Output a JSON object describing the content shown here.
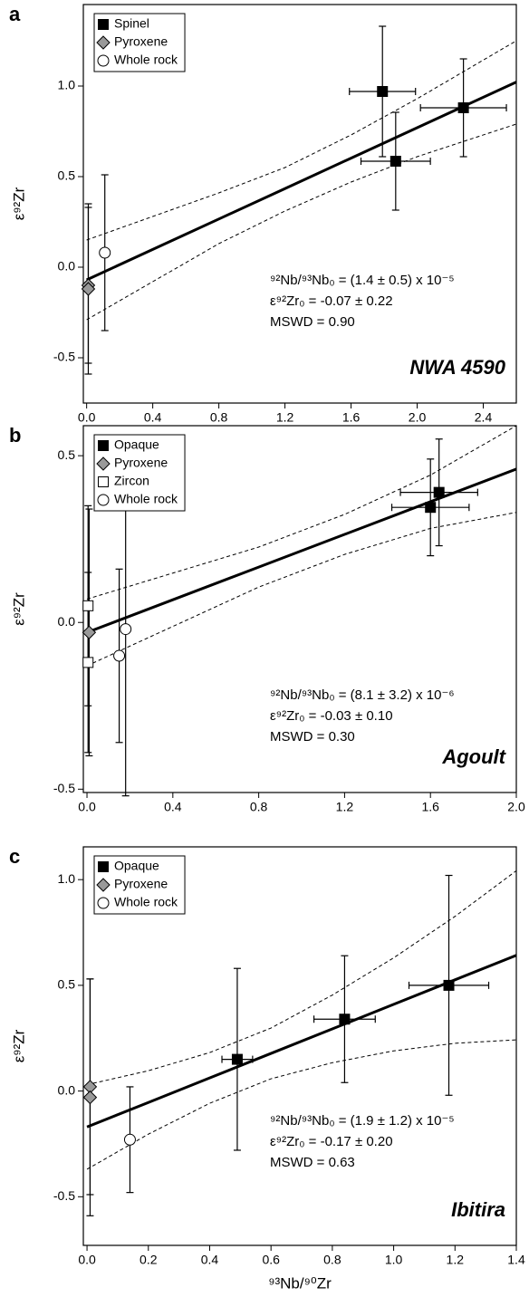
{
  "chart_data": [
    {
      "type": "scatter",
      "panel": "a",
      "ylabel": "ε⁹²Zr",
      "xlim": [
        -0.02,
        2.6
      ],
      "ylim": [
        -0.75,
        1.45
      ],
      "xticks": [
        {
          "value": 0,
          "label": "0.0"
        },
        0.4,
        0.8,
        1.2,
        1.6,
        {
          "value": 2,
          "label": "2.0"
        },
        2.4
      ],
      "yticks": [
        {
          "value": 1,
          "label": "1.0"
        },
        0.5,
        {
          "value": 0,
          "label": "0.0"
        },
        -0.5
      ],
      "legend": "upper left",
      "series": [
        {
          "name": "Spinel",
          "marker": "square",
          "color": "#000000",
          "x": [
            1.79,
            1.87,
            2.28
          ],
          "y": [
            0.97,
            0.585,
            0.88
          ],
          "xerr": [
            0.2,
            0.21,
            0.26
          ],
          "yerr": [
            0.36,
            0.27,
            0.27
          ]
        },
        {
          "name": "Pyroxene",
          "marker": "diamond",
          "color": "#999999",
          "x": [
            0.01,
            0.01
          ],
          "y": [
            -0.1,
            -0.12
          ],
          "xerr": [
            null,
            null
          ],
          "yerr": [
            0.43,
            0.47
          ]
        },
        {
          "name": "Whole rock",
          "marker": "circle",
          "color": "#ffffff",
          "x": [
            0.11
          ],
          "y": [
            0.08
          ],
          "xerr": [
            null
          ],
          "yerr": [
            0.43
          ]
        }
      ],
      "fit": {
        "x": [
          0,
          0.4,
          0.8,
          1.2,
          1.6,
          2.0,
          2.6
        ],
        "y": [
          -0.07,
          0.098,
          0.266,
          0.434,
          0.602,
          0.77,
          1.022
        ],
        "upper": [
          0.15,
          0.28,
          0.41,
          0.55,
          0.73,
          0.93,
          1.25
        ],
        "lower": [
          -0.29,
          -0.08,
          0.13,
          0.31,
          0.47,
          0.61,
          0.79
        ]
      },
      "annotations": [
        "⁹²Nb/⁹³Nb₀ = (1.4 ± 0.5) x 10⁻⁵",
        "ε⁹²Zr₀ = -0.07 ± 0.22",
        "MSWD = 0.90"
      ],
      "sample": "NWA 4590"
    },
    {
      "type": "scatter",
      "panel": "b",
      "ylabel": "ε⁹²Zr",
      "xlim": [
        -0.017,
        2.0
      ],
      "ylim": [
        -0.51,
        0.59
      ],
      "xticks": [
        {
          "value": 0,
          "label": "0.0"
        },
        0.4,
        0.8,
        1.2,
        1.6,
        {
          "value": 2,
          "label": "2.0"
        }
      ],
      "yticks": [
        0.5,
        {
          "value": 0,
          "label": "0.0"
        },
        -0.5
      ],
      "legend": "upper left",
      "series": [
        {
          "name": "Opaque",
          "marker": "square",
          "color": "#000000",
          "x": [
            1.6,
            1.64
          ],
          "y": [
            0.345,
            0.39
          ],
          "xerr": [
            0.18,
            0.18
          ],
          "yerr": [
            0.145,
            0.16
          ]
        },
        {
          "name": "Pyroxene",
          "marker": "diamond",
          "color": "#999999",
          "x": [
            0.01
          ],
          "y": [
            -0.03
          ],
          "xerr": [
            null
          ],
          "yerr": [
            0.37
          ]
        },
        {
          "name": "Zircon",
          "marker": "square",
          "color": "#ffffff",
          "x": [
            0.005,
            0.005
          ],
          "y": [
            0.05,
            -0.12
          ],
          "xerr": [
            null,
            null
          ],
          "yerr": [
            0.3,
            0.27
          ]
        },
        {
          "name": "Whole rock",
          "marker": "circle",
          "color": "#ffffff",
          "x": [
            0.15,
            0.18
          ],
          "y": [
            -0.1,
            -0.02
          ],
          "xerr": [
            null,
            null
          ],
          "yerr": [
            0.26,
            0.5
          ]
        }
      ],
      "fit": {
        "x": [
          0,
          0.4,
          0.8,
          1.2,
          1.6,
          2.0
        ],
        "y": [
          -0.03,
          0.068,
          0.166,
          0.264,
          0.362,
          0.46
        ],
        "upper": [
          0.07,
          0.148,
          0.226,
          0.324,
          0.442,
          0.59
        ],
        "lower": [
          -0.13,
          -0.012,
          0.106,
          0.204,
          0.282,
          0.33
        ]
      },
      "annotations": [
        "⁹²Nb/⁹³Nb₀ = (8.1 ± 3.2) x 10⁻⁶",
        "ε⁹²Zr₀ = -0.03 ± 0.10",
        "MSWD = 0.30"
      ],
      "sample": "Agoult"
    },
    {
      "type": "scatter",
      "panel": "c",
      "ylabel": "ε⁹²Zr",
      "xlabel": "⁹³Nb/⁹⁰Zr",
      "xlim": [
        -0.012,
        1.4
      ],
      "ylim": [
        -0.73,
        1.155
      ],
      "xticks": [
        {
          "value": 0,
          "label": "0.0"
        },
        0.2,
        0.4,
        0.6,
        0.8,
        {
          "value": 1,
          "label": "1.0"
        },
        1.2,
        1.4
      ],
      "yticks": [
        {
          "value": 1,
          "label": "1.0"
        },
        0.5,
        {
          "value": 0,
          "label": "0.0"
        },
        -0.5
      ],
      "legend": "upper left",
      "series": [
        {
          "name": "Opaque",
          "marker": "square",
          "color": "#000000",
          "x": [
            0.49,
            0.84,
            1.18
          ],
          "y": [
            0.15,
            0.34,
            0.5
          ],
          "xerr": [
            0.05,
            0.1,
            0.13
          ],
          "yerr": [
            0.43,
            0.3,
            0.52
          ]
        },
        {
          "name": "Pyroxene",
          "marker": "diamond",
          "color": "#999999",
          "x": [
            0.01,
            0.01
          ],
          "y": [
            0.02,
            -0.03
          ],
          "xerr": [
            null,
            null
          ],
          "yerr": [
            0.51,
            0.56
          ]
        },
        {
          "name": "Whole rock",
          "marker": "circle",
          "color": "#ffffff",
          "x": [
            0.14
          ],
          "y": [
            -0.23
          ],
          "xerr": [
            null
          ],
          "yerr": [
            0.25
          ]
        }
      ],
      "fit": {
        "x": [
          0,
          0.2,
          0.4,
          0.6,
          0.8,
          1.0,
          1.2,
          1.4
        ],
        "y": [
          -0.17,
          -0.054,
          0.062,
          0.178,
          0.294,
          0.41,
          0.526,
          0.642
        ],
        "upper": [
          0.03,
          0.096,
          0.182,
          0.298,
          0.454,
          0.63,
          0.826,
          1.042
        ],
        "lower": [
          -0.37,
          -0.204,
          -0.058,
          0.058,
          0.134,
          0.19,
          0.226,
          0.242
        ]
      },
      "annotations": [
        "⁹²Nb/⁹³Nb₀ = (1.9 ± 1.2) x 10⁻⁵",
        "ε⁹²Zr₀ = -0.17 ± 0.20",
        "MSWD = 0.63"
      ],
      "sample": "Ibitira"
    }
  ]
}
